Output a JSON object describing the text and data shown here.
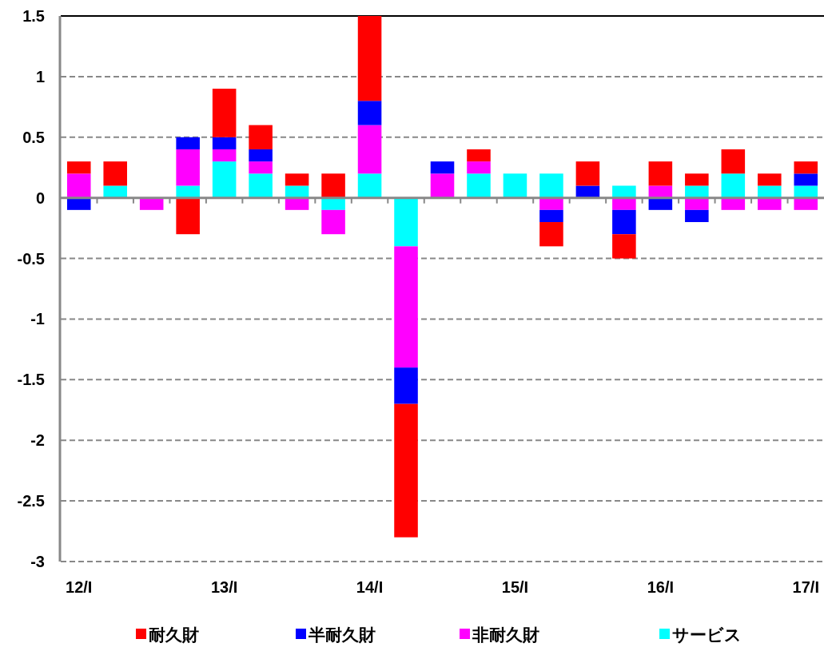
{
  "chart_data": {
    "type": "bar",
    "stacked": true,
    "categories": [
      "12/I",
      null,
      null,
      null,
      "13/I",
      null,
      null,
      null,
      "14/I",
      null,
      null,
      null,
      "15/I",
      null,
      null,
      null,
      "16/I",
      null,
      null,
      null,
      "17/I"
    ],
    "series": [
      {
        "name": "サービス",
        "color": "#00ffff",
        "values": [
          0,
          0.1,
          0,
          0.1,
          0.3,
          0.2,
          0.1,
          -0.1,
          0.2,
          -0.4,
          0,
          0.2,
          0.2,
          0.2,
          0,
          0.1,
          0,
          0.1,
          0.2,
          0.1,
          0.1
        ]
      },
      {
        "name": "非耐久財",
        "color": "#ff00ff",
        "values": [
          0.2,
          0,
          -0.1,
          0.3,
          0.1,
          0.1,
          -0.1,
          -0.2,
          0.4,
          -1.0,
          0.2,
          0.1,
          0,
          -0.1,
          0,
          -0.1,
          0.1,
          -0.1,
          -0.1,
          -0.1,
          -0.1
        ]
      },
      {
        "name": "半耐久財",
        "color": "#0000ff",
        "values": [
          -0.1,
          0,
          0,
          0.1,
          0.1,
          0.1,
          0,
          0,
          0.2,
          -0.3,
          0.1,
          0,
          0,
          -0.1,
          0.1,
          -0.2,
          -0.1,
          -0.1,
          0,
          0,
          0.1
        ]
      },
      {
        "name": "耐久財",
        "color": "#ff0000",
        "values": [
          0.1,
          0.2,
          0,
          -0.3,
          0.4,
          0.2,
          0.1,
          0.2,
          0.7,
          -1.1,
          0,
          0.1,
          0,
          -0.2,
          0.2,
          -0.2,
          0.2,
          0.1,
          0.2,
          0.1,
          0.1
        ]
      }
    ],
    "ylim": [
      -3,
      1.5
    ],
    "yticks": [
      -3,
      -2.5,
      -2,
      -1.5,
      -1,
      -0.5,
      0,
      0.5,
      1,
      1.5
    ],
    "grid": "y",
    "legend": "bottom"
  }
}
